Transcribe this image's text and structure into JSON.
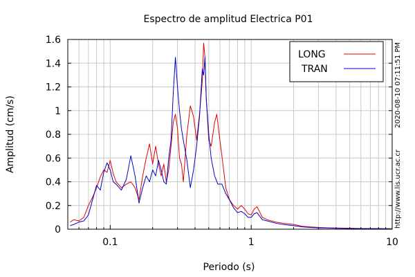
{
  "chart_data": {
    "type": "line",
    "title": "Espectro de amplitud Electrica P01",
    "xlabel": "Periodo (s)",
    "ylabel": "Amplitud (cm/s)",
    "x_scale": "log",
    "xlim": [
      0.05,
      10
    ],
    "ylim": [
      0,
      1.6
    ],
    "x_ticks": [
      0.1,
      1,
      10
    ],
    "x_tick_labels": [
      "0.1",
      "1",
      "10"
    ],
    "y_ticks": [
      0,
      0.2,
      0.4,
      0.6,
      0.8,
      1,
      1.2,
      1.4,
      1.6
    ],
    "y_tick_labels": [
      "0",
      "0.2",
      "0.4",
      "0.6",
      "0.8",
      "1",
      "1.2",
      "1.4",
      "1.6"
    ],
    "grid": true,
    "legend_placement": "top-right",
    "right_annotations": [
      "2020-08-10 07:11:51 PM",
      "http://www.lis.ucr.ac.cr"
    ],
    "series": [
      {
        "name": "LONG",
        "color": "#dd0000",
        "points": [
          [
            0.052,
            0.06
          ],
          [
            0.055,
            0.08
          ],
          [
            0.06,
            0.07
          ],
          [
            0.065,
            0.1
          ],
          [
            0.07,
            0.2
          ],
          [
            0.075,
            0.27
          ],
          [
            0.08,
            0.35
          ],
          [
            0.085,
            0.44
          ],
          [
            0.09,
            0.5
          ],
          [
            0.095,
            0.48
          ],
          [
            0.1,
            0.58
          ],
          [
            0.105,
            0.47
          ],
          [
            0.11,
            0.4
          ],
          [
            0.12,
            0.35
          ],
          [
            0.13,
            0.38
          ],
          [
            0.14,
            0.4
          ],
          [
            0.15,
            0.35
          ],
          [
            0.16,
            0.25
          ],
          [
            0.17,
            0.45
          ],
          [
            0.18,
            0.6
          ],
          [
            0.19,
            0.72
          ],
          [
            0.2,
            0.55
          ],
          [
            0.21,
            0.7
          ],
          [
            0.22,
            0.55
          ],
          [
            0.23,
            0.45
          ],
          [
            0.24,
            0.55
          ],
          [
            0.25,
            0.4
          ],
          [
            0.26,
            0.5
          ],
          [
            0.27,
            0.7
          ],
          [
            0.28,
            0.9
          ],
          [
            0.29,
            0.97
          ],
          [
            0.3,
            0.85
          ],
          [
            0.31,
            0.6
          ],
          [
            0.32,
            0.55
          ],
          [
            0.33,
            0.4
          ],
          [
            0.35,
            0.8
          ],
          [
            0.37,
            1.04
          ],
          [
            0.39,
            0.95
          ],
          [
            0.41,
            0.75
          ],
          [
            0.43,
            0.97
          ],
          [
            0.45,
            1.25
          ],
          [
            0.46,
            1.57
          ],
          [
            0.47,
            1.45
          ],
          [
            0.48,
            1.1
          ],
          [
            0.5,
            0.75
          ],
          [
            0.52,
            0.7
          ],
          [
            0.55,
            0.9
          ],
          [
            0.57,
            0.97
          ],
          [
            0.6,
            0.75
          ],
          [
            0.63,
            0.55
          ],
          [
            0.66,
            0.35
          ],
          [
            0.7,
            0.25
          ],
          [
            0.75,
            0.2
          ],
          [
            0.8,
            0.17
          ],
          [
            0.85,
            0.2
          ],
          [
            0.9,
            0.17
          ],
          [
            0.95,
            0.13
          ],
          [
            1.0,
            0.12
          ],
          [
            1.05,
            0.17
          ],
          [
            1.1,
            0.19
          ],
          [
            1.2,
            0.1
          ],
          [
            1.3,
            0.08
          ],
          [
            1.5,
            0.06
          ],
          [
            1.7,
            0.05
          ],
          [
            2.0,
            0.04
          ],
          [
            2.3,
            0.025
          ],
          [
            2.6,
            0.02
          ],
          [
            3.0,
            0.015
          ],
          [
            3.5,
            0.012
          ],
          [
            4.0,
            0.01
          ],
          [
            5.0,
            0.008
          ],
          [
            6.0,
            0.006
          ],
          [
            8.0,
            0.005
          ],
          [
            10.0,
            0.004
          ]
        ]
      },
      {
        "name": "TRAN",
        "color": "#0000cc",
        "points": [
          [
            0.052,
            0.03
          ],
          [
            0.055,
            0.04
          ],
          [
            0.06,
            0.06
          ],
          [
            0.065,
            0.07
          ],
          [
            0.07,
            0.12
          ],
          [
            0.075,
            0.25
          ],
          [
            0.08,
            0.37
          ],
          [
            0.085,
            0.33
          ],
          [
            0.09,
            0.48
          ],
          [
            0.095,
            0.56
          ],
          [
            0.1,
            0.5
          ],
          [
            0.105,
            0.4
          ],
          [
            0.11,
            0.38
          ],
          [
            0.12,
            0.33
          ],
          [
            0.13,
            0.42
          ],
          [
            0.135,
            0.52
          ],
          [
            0.14,
            0.62
          ],
          [
            0.15,
            0.45
          ],
          [
            0.16,
            0.22
          ],
          [
            0.17,
            0.35
          ],
          [
            0.18,
            0.45
          ],
          [
            0.19,
            0.4
          ],
          [
            0.2,
            0.5
          ],
          [
            0.21,
            0.45
          ],
          [
            0.22,
            0.58
          ],
          [
            0.23,
            0.5
          ],
          [
            0.24,
            0.4
          ],
          [
            0.25,
            0.38
          ],
          [
            0.26,
            0.6
          ],
          [
            0.27,
            0.75
          ],
          [
            0.28,
            1.15
          ],
          [
            0.29,
            1.45
          ],
          [
            0.3,
            1.2
          ],
          [
            0.31,
            1.0
          ],
          [
            0.32,
            0.85
          ],
          [
            0.33,
            0.75
          ],
          [
            0.35,
            0.58
          ],
          [
            0.37,
            0.35
          ],
          [
            0.39,
            0.5
          ],
          [
            0.41,
            0.7
          ],
          [
            0.43,
            0.95
          ],
          [
            0.45,
            1.35
          ],
          [
            0.46,
            1.3
          ],
          [
            0.47,
            1.45
          ],
          [
            0.48,
            1.1
          ],
          [
            0.5,
            0.8
          ],
          [
            0.52,
            0.6
          ],
          [
            0.55,
            0.45
          ],
          [
            0.58,
            0.38
          ],
          [
            0.62,
            0.38
          ],
          [
            0.66,
            0.3
          ],
          [
            0.7,
            0.25
          ],
          [
            0.75,
            0.18
          ],
          [
            0.8,
            0.14
          ],
          [
            0.85,
            0.15
          ],
          [
            0.9,
            0.13
          ],
          [
            0.95,
            0.1
          ],
          [
            1.0,
            0.1
          ],
          [
            1.05,
            0.13
          ],
          [
            1.1,
            0.14
          ],
          [
            1.2,
            0.08
          ],
          [
            1.3,
            0.07
          ],
          [
            1.5,
            0.05
          ],
          [
            1.7,
            0.04
          ],
          [
            2.0,
            0.03
          ],
          [
            2.3,
            0.02
          ],
          [
            2.6,
            0.015
          ],
          [
            3.0,
            0.012
          ],
          [
            3.5,
            0.01
          ],
          [
            4.0,
            0.008
          ],
          [
            5.0,
            0.006
          ],
          [
            6.0,
            0.005
          ],
          [
            8.0,
            0.004
          ],
          [
            10.0,
            0.003
          ]
        ]
      }
    ]
  }
}
